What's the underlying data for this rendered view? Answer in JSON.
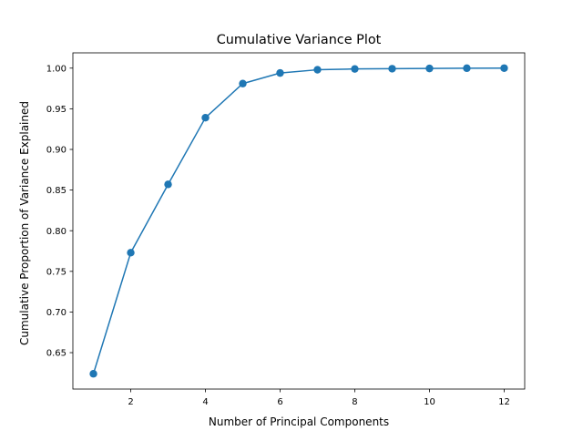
{
  "chart_data": {
    "type": "line",
    "title": "Cumulative Variance Plot",
    "xlabel": "Number of Principal Components",
    "ylabel": "Cumulative Proportion of Variance Explained",
    "x": [
      1,
      2,
      3,
      4,
      5,
      6,
      7,
      8,
      9,
      10,
      11,
      12
    ],
    "series": [
      {
        "values": [
          0.624,
          0.773,
          0.857,
          0.939,
          0.981,
          0.994,
          0.998,
          0.999,
          0.9993,
          0.9996,
          0.9999,
          1.0
        ],
        "color": "#1f77b4",
        "marker": "circle"
      }
    ],
    "xlim": [
      0.45,
      12.55
    ],
    "ylim": [
      0.6052,
      1.0188
    ],
    "xticks": [
      2,
      4,
      6,
      8,
      10,
      12
    ],
    "yticks": [
      0.65,
      0.7,
      0.75,
      0.8,
      0.85,
      0.9,
      0.95,
      1.0
    ],
    "xtick_labels": [
      "2",
      "4",
      "6",
      "8",
      "10",
      "12"
    ],
    "ytick_labels": [
      "0.65",
      "0.70",
      "0.75",
      "0.80",
      "0.85",
      "0.90",
      "0.95",
      "1.00"
    ],
    "grid": false,
    "legend": false
  }
}
